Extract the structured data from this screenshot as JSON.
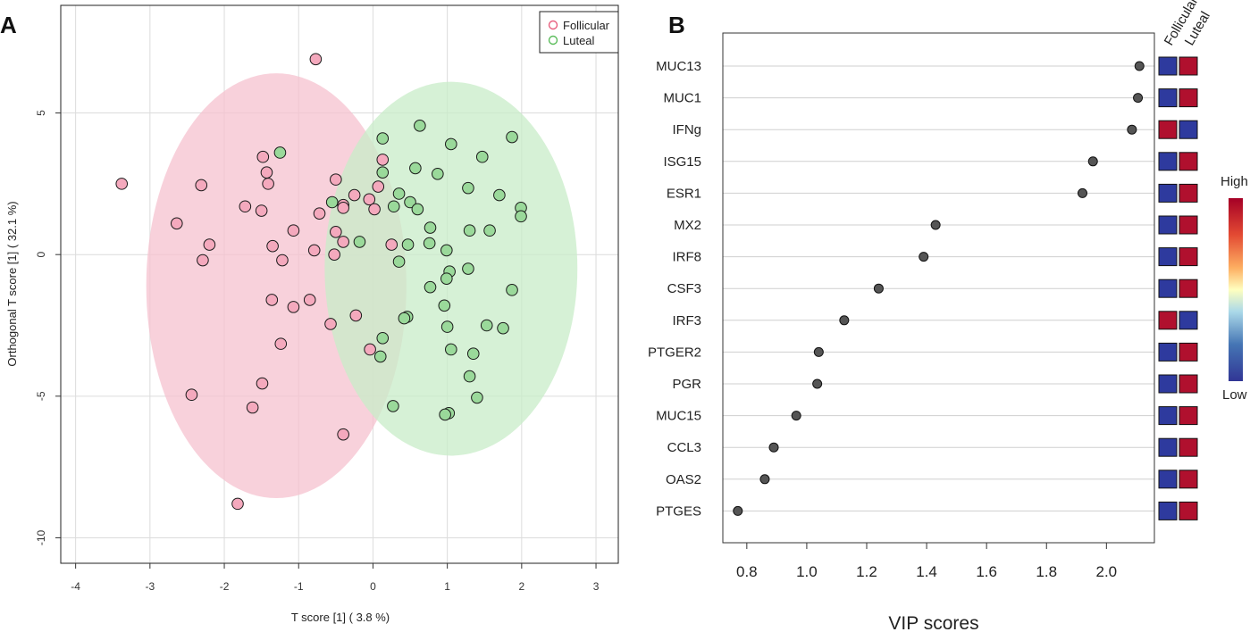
{
  "chart_data": [
    {
      "type": "scatter",
      "panel_label": "A",
      "title": "",
      "xlabel": "T score [1] ( 3.8 %)",
      "ylabel": "Orthogonal T score [1] ( 32.1 %)",
      "xlim": [
        -4.2,
        3.3
      ],
      "ylim": [
        -10.9,
        8.8
      ],
      "xticks": [
        -4,
        -3,
        -2,
        -1,
        0,
        1,
        2,
        3
      ],
      "yticks": [
        -10,
        -5,
        0,
        5
      ],
      "grid": true,
      "legend_position": "top-right",
      "legend": [
        "Follicular",
        "Luteal"
      ],
      "colors": {
        "Follicular": "#e8607f",
        "Luteal": "#5cbd5c",
        "follicular_fill": "#f4a9bd",
        "luteal_fill": "#9ad99a",
        "follicular_ellipse": "#f5c2cf",
        "luteal_ellipse": "#c8ecc8"
      },
      "ellipses": [
        {
          "name": "Follicular",
          "center": [
            -1.3,
            -1.1
          ],
          "radii": [
            1.75,
            7.5
          ]
        },
        {
          "name": "Luteal",
          "center": [
            1.05,
            -0.5
          ],
          "radii": [
            1.7,
            6.6
          ]
        }
      ],
      "series": [
        {
          "name": "Follicular",
          "points": [
            [
              -0.77,
              6.9
            ],
            [
              -3.38,
              2.5
            ],
            [
              -2.31,
              2.45
            ],
            [
              -2.64,
              1.1
            ],
            [
              -2.2,
              0.35
            ],
            [
              -2.29,
              -0.2
            ],
            [
              -1.72,
              1.7
            ],
            [
              -1.48,
              3.45
            ],
            [
              -1.43,
              2.9
            ],
            [
              -1.41,
              2.5
            ],
            [
              -1.5,
              1.55
            ],
            [
              -1.35,
              0.3
            ],
            [
              -1.07,
              0.85
            ],
            [
              -1.22,
              -0.2
            ],
            [
              -1.36,
              -1.6
            ],
            [
              -1.07,
              -1.85
            ],
            [
              -0.85,
              -1.6
            ],
            [
              -1.24,
              -3.15
            ],
            [
              -1.49,
              -4.55
            ],
            [
              -1.62,
              -5.4
            ],
            [
              -2.44,
              -4.95
            ],
            [
              -1.82,
              -8.8
            ],
            [
              -0.79,
              0.15
            ],
            [
              -0.72,
              1.45
            ],
            [
              -0.5,
              2.65
            ],
            [
              -0.4,
              1.75
            ],
            [
              -0.5,
              0.8
            ],
            [
              -0.4,
              1.65
            ],
            [
              -0.4,
              0.45
            ],
            [
              -0.52,
              0.0
            ],
            [
              -0.25,
              2.1
            ],
            [
              -0.57,
              -2.45
            ],
            [
              -0.23,
              -2.15
            ],
            [
              -0.05,
              1.95
            ],
            [
              0.02,
              1.6
            ],
            [
              0.07,
              2.4
            ],
            [
              0.13,
              3.35
            ],
            [
              0.25,
              0.35
            ],
            [
              -0.04,
              -3.35
            ],
            [
              -0.4,
              -6.35
            ]
          ]
        },
        {
          "name": "Luteal",
          "points": [
            [
              -1.25,
              3.6
            ],
            [
              -0.55,
              1.85
            ],
            [
              -0.18,
              0.45
            ],
            [
              0.13,
              4.1
            ],
            [
              0.13,
              2.9
            ],
            [
              0.35,
              2.15
            ],
            [
              0.28,
              1.7
            ],
            [
              0.5,
              1.85
            ],
            [
              0.57,
              3.05
            ],
            [
              0.63,
              4.55
            ],
            [
              0.6,
              1.6
            ],
            [
              0.35,
              -0.25
            ],
            [
              0.47,
              0.35
            ],
            [
              0.77,
              0.95
            ],
            [
              0.76,
              0.4
            ],
            [
              0.87,
              2.85
            ],
            [
              1.05,
              3.9
            ],
            [
              1.28,
              2.35
            ],
            [
              1.47,
              3.45
            ],
            [
              1.7,
              2.1
            ],
            [
              1.87,
              4.15
            ],
            [
              1.99,
              1.65
            ],
            [
              1.99,
              1.35
            ],
            [
              1.57,
              0.85
            ],
            [
              1.3,
              0.85
            ],
            [
              0.99,
              0.15
            ],
            [
              1.03,
              -0.6
            ],
            [
              0.99,
              -0.85
            ],
            [
              1.28,
              -0.5
            ],
            [
              0.77,
              -1.15
            ],
            [
              0.96,
              -1.8
            ],
            [
              1.0,
              -2.55
            ],
            [
              1.53,
              -2.5
            ],
            [
              1.75,
              -2.6
            ],
            [
              1.87,
              -1.25
            ],
            [
              1.35,
              -3.5
            ],
            [
              1.05,
              -3.35
            ],
            [
              0.46,
              -2.2
            ],
            [
              0.42,
              -2.25
            ],
            [
              0.13,
              -2.95
            ],
            [
              0.1,
              -3.6
            ],
            [
              1.3,
              -4.3
            ],
            [
              1.4,
              -5.05
            ],
            [
              1.02,
              -5.6
            ],
            [
              0.97,
              -5.65
            ],
            [
              0.27,
              -5.35
            ]
          ]
        }
      ]
    },
    {
      "type": "dot",
      "panel_label": "B",
      "title": "",
      "xlabel": "VIP scores",
      "ylabel": "",
      "xlim": [
        0.72,
        2.16
      ],
      "xticks": [
        "0.8",
        "1.0",
        "1.2",
        "1.4",
        "1.6",
        "1.8",
        "2.0"
      ],
      "categories": [
        "MUC13",
        "MUC1",
        "IFNg",
        "ISG15",
        "ESR1",
        "MX2",
        "IRF8",
        "CSF3",
        "IRF3",
        "PTGER2",
        "PGR",
        "MUC15",
        "CCL3",
        "OAS2",
        "PTGES"
      ],
      "values": [
        2.11,
        2.105,
        2.085,
        1.955,
        1.92,
        1.43,
        1.39,
        1.24,
        1.125,
        1.04,
        1.035,
        0.965,
        0.89,
        0.86,
        0.77
      ],
      "heatmap": {
        "columns": [
          "Follicular",
          "Luteal"
        ],
        "levels": [
          [
            "Low",
            "High"
          ],
          [
            "Low",
            "High"
          ],
          [
            "High",
            "Low"
          ],
          [
            "Low",
            "High"
          ],
          [
            "Low",
            "High"
          ],
          [
            "Low",
            "High"
          ],
          [
            "Low",
            "High"
          ],
          [
            "Low",
            "High"
          ],
          [
            "High",
            "Low"
          ],
          [
            "Low",
            "High"
          ],
          [
            "Low",
            "High"
          ],
          [
            "Low",
            "High"
          ],
          [
            "Low",
            "High"
          ],
          [
            "Low",
            "High"
          ],
          [
            "Low",
            "High"
          ]
        ],
        "colors": {
          "High": "#b0102e",
          "Low": "#2e3a9e"
        },
        "scale_labels": {
          "high": "High",
          "low": "Low"
        }
      }
    }
  ]
}
